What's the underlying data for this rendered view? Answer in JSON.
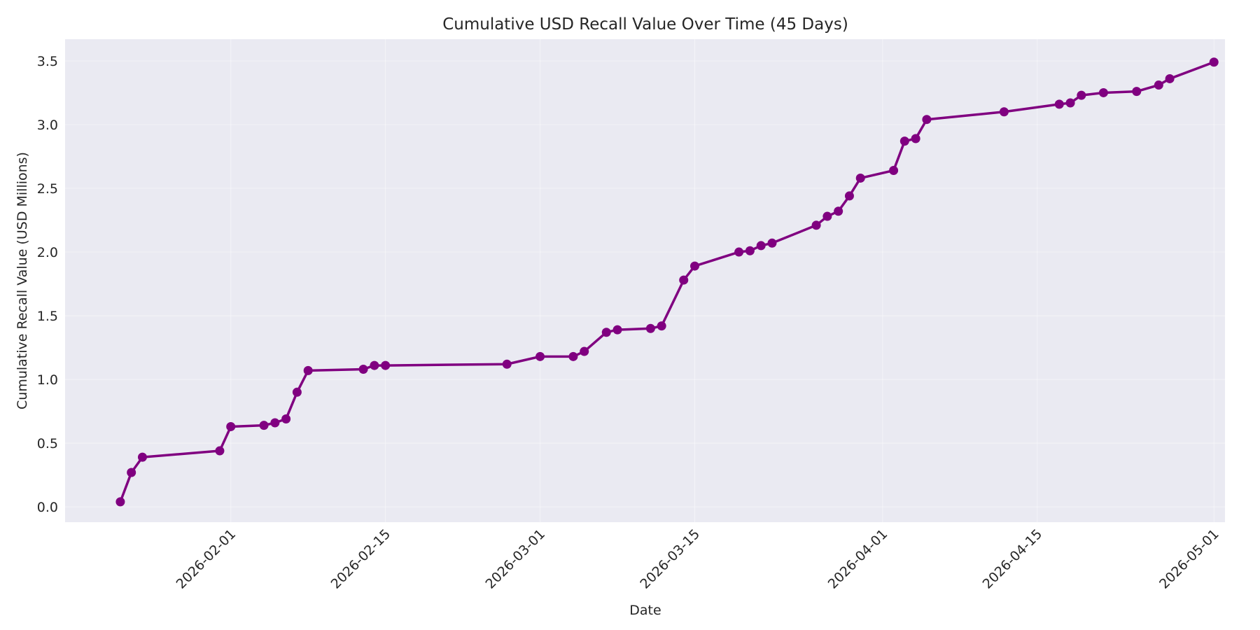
{
  "chart_data": {
    "type": "line",
    "title": "Cumulative USD Recall Value Over Time (45 Days)",
    "xlabel": "Date",
    "ylabel": "Cumulative Recall Value (USD Millions)",
    "x_tick_labels": [
      "2026-02-01",
      "2026-02-15",
      "2026-03-01",
      "2026-03-15",
      "2026-04-01",
      "2026-04-15",
      "2026-05-01"
    ],
    "y_tick_labels": [
      "0.0",
      "0.5",
      "1.0",
      "1.5",
      "2.0",
      "2.5",
      "3.0",
      "3.5"
    ],
    "xlim": [
      "2026-01-17",
      "2026-05-02"
    ],
    "ylim": [
      -0.12,
      3.67
    ],
    "grid": true,
    "colors": {
      "line": "#800080",
      "background": "#eaeaf2",
      "grid": "#ffffff"
    },
    "series": [
      {
        "x": [
          "2026-01-22",
          "2026-01-23",
          "2026-01-24",
          "2026-01-31",
          "2026-02-01",
          "2026-02-04",
          "2026-02-05",
          "2026-02-06",
          "2026-02-07",
          "2026-02-08",
          "2026-02-13",
          "2026-02-14",
          "2026-02-15",
          "2026-02-26",
          "2026-03-01",
          "2026-03-04",
          "2026-03-05",
          "2026-03-07",
          "2026-03-08",
          "2026-03-11",
          "2026-03-12",
          "2026-03-14",
          "2026-03-15",
          "2026-03-19",
          "2026-03-20",
          "2026-03-21",
          "2026-03-22",
          "2026-03-26",
          "2026-03-27",
          "2026-03-28",
          "2026-03-29",
          "2026-03-30",
          "2026-04-02",
          "2026-04-03",
          "2026-04-04",
          "2026-04-05",
          "2026-04-12",
          "2026-04-17",
          "2026-04-18",
          "2026-04-19",
          "2026-04-21",
          "2026-04-24",
          "2026-04-26",
          "2026-04-27",
          "2026-05-01"
        ],
        "values": [
          0.04,
          0.27,
          0.39,
          0.44,
          0.63,
          0.64,
          0.66,
          0.69,
          0.9,
          1.07,
          1.08,
          1.11,
          1.11,
          1.12,
          1.18,
          1.18,
          1.22,
          1.37,
          1.39,
          1.4,
          1.42,
          1.78,
          1.89,
          2.0,
          2.01,
          2.05,
          2.07,
          2.21,
          2.28,
          2.32,
          2.44,
          2.58,
          2.64,
          2.87,
          2.89,
          3.04,
          3.1,
          3.16,
          3.17,
          3.23,
          3.25,
          3.26,
          3.31,
          3.36,
          3.49
        ]
      }
    ]
  }
}
